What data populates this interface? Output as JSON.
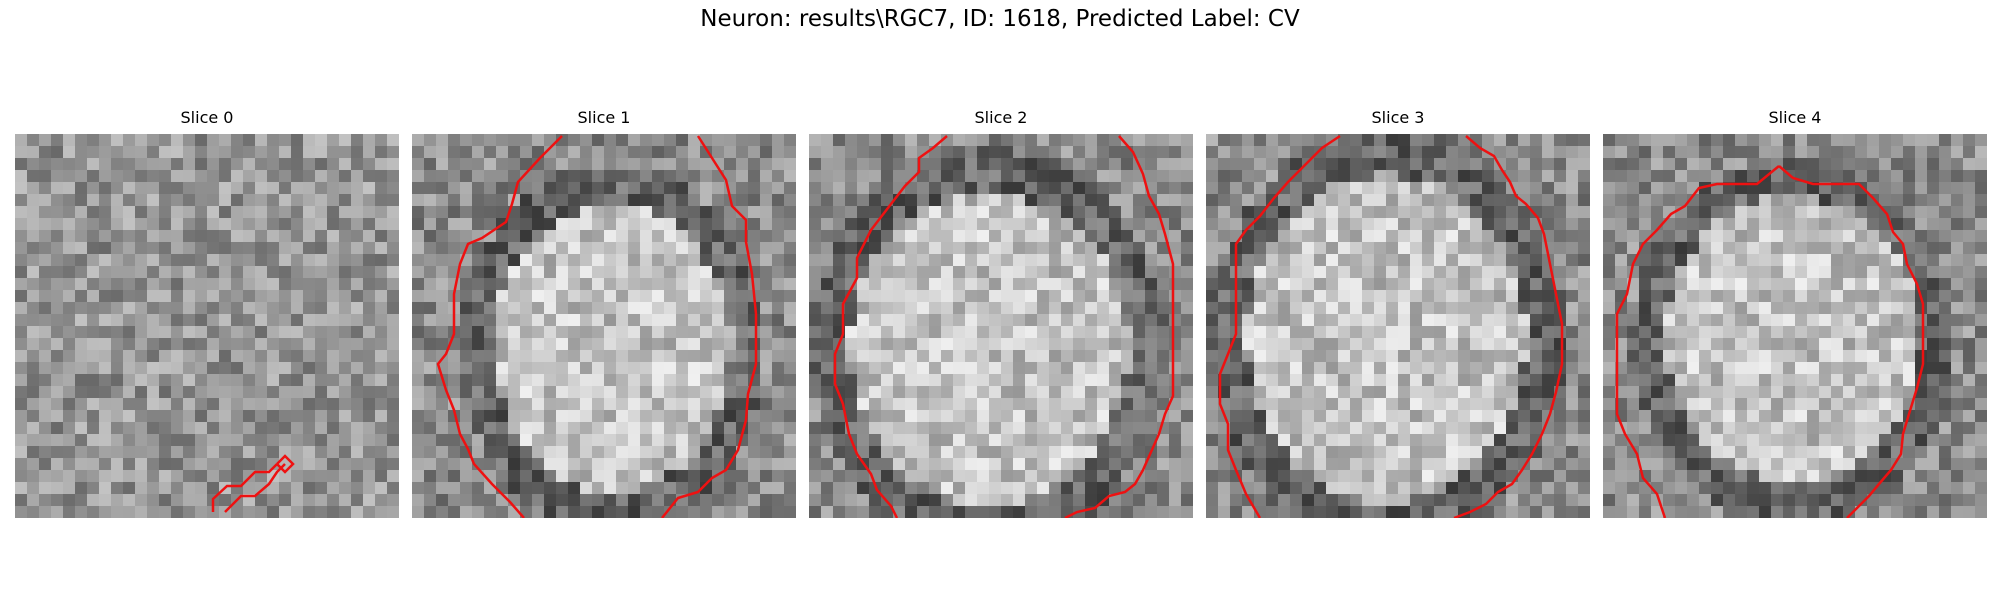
{
  "figure": {
    "title": "Neuron: results\\RGC7, ID: 1618, Predicted Label: CV"
  },
  "contour_color": "#ee1111",
  "slices": [
    {
      "label": "Slice 0",
      "has_cell": false
    },
    {
      "label": "Slice 1",
      "has_cell": true
    },
    {
      "label": "Slice 2",
      "has_cell": true
    },
    {
      "label": "Slice 3",
      "has_cell": true
    },
    {
      "label": "Slice 4",
      "has_cell": true
    }
  ]
}
